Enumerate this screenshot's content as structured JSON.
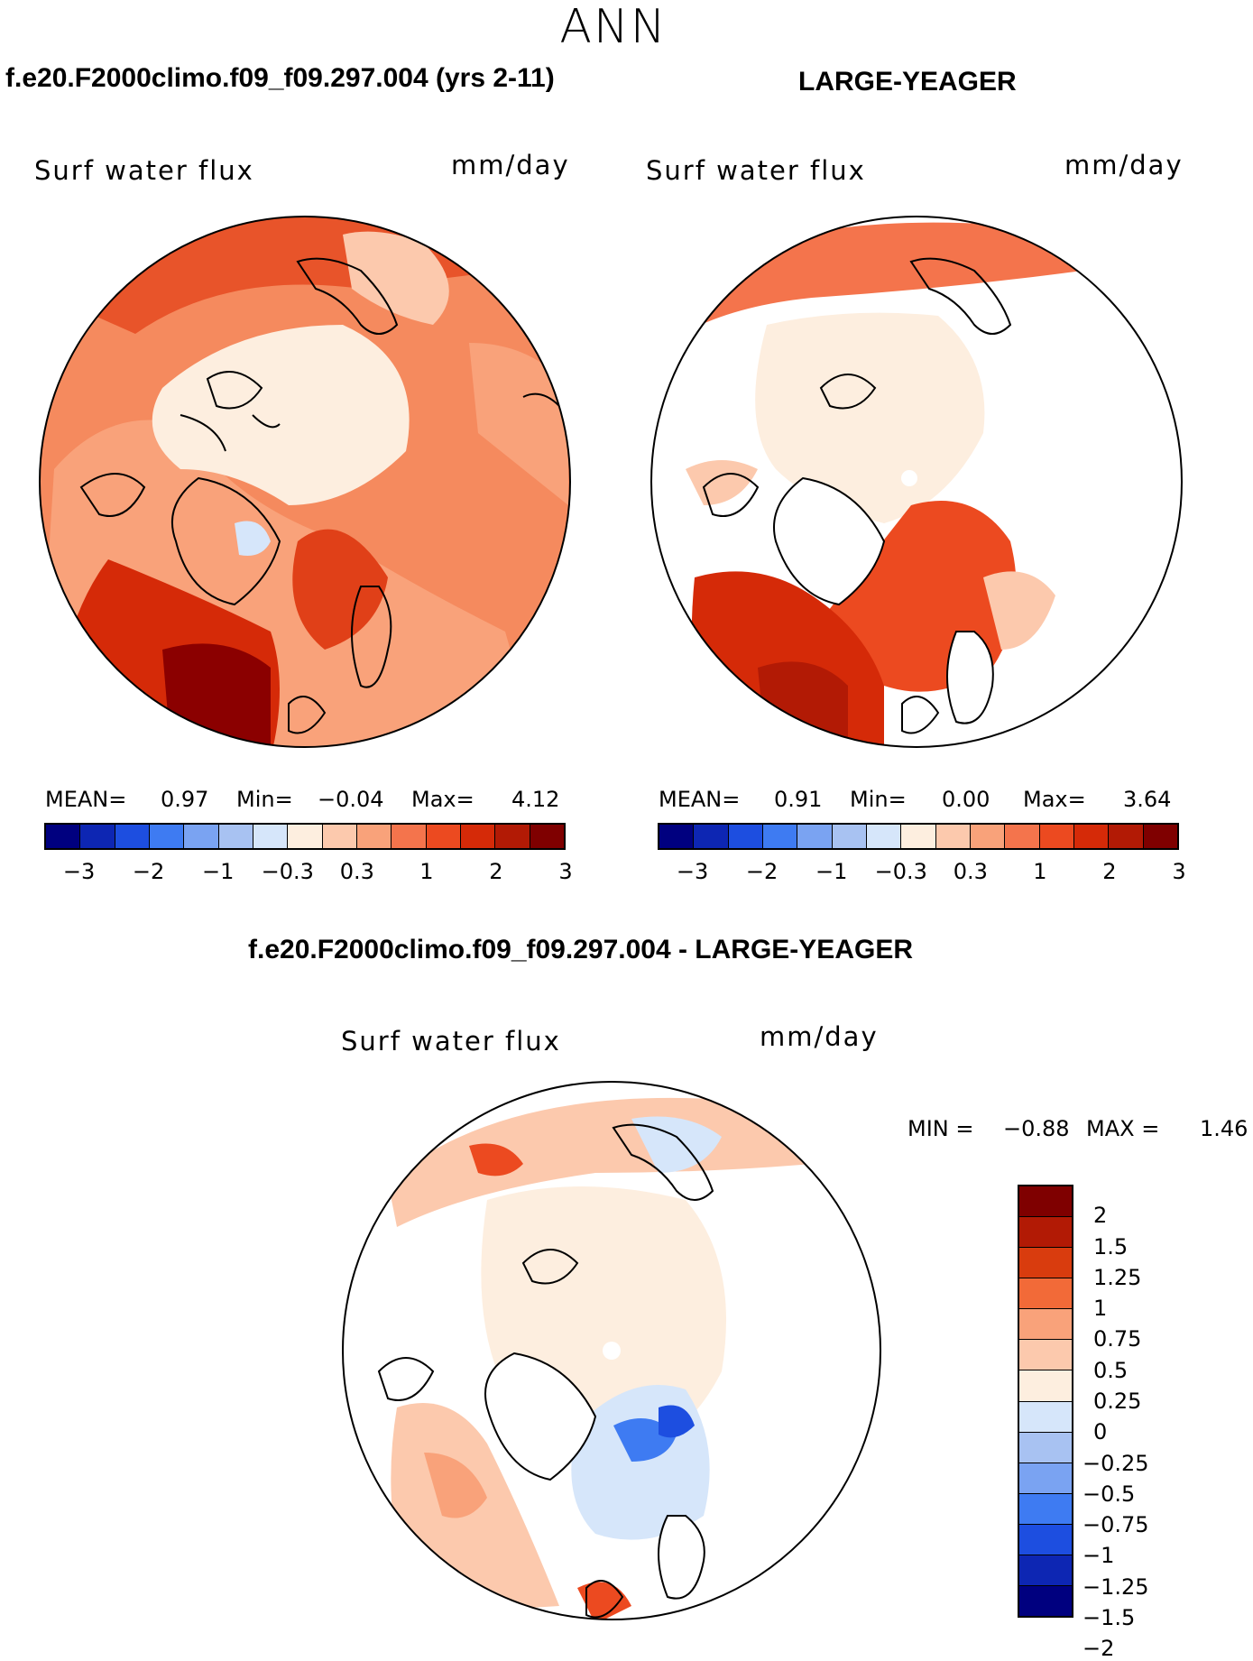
{
  "super_title": "ANN",
  "panels": [
    {
      "title": "f.e20.F2000climo.f09_f09.297.004 (yrs 2-11)",
      "field": "Surf water flux",
      "unit": "mm/day",
      "mean_label": "MEAN=",
      "mean": "0.97",
      "min_label": "Min=",
      "min": "−0.04",
      "max_label": "Max=",
      "max": "4.12"
    },
    {
      "title": "LARGE-YEAGER",
      "field": "Surf water flux",
      "unit": "mm/day",
      "mean_label": "MEAN=",
      "mean": "0.91",
      "min_label": "Min=",
      "min": "0.00",
      "max_label": "Max=",
      "max": "3.64"
    }
  ],
  "diff_panel": {
    "title": "f.e20.F2000climo.f09_f09.297.004 - LARGE-YEAGER",
    "field": "Surf water flux",
    "unit": "mm/day",
    "min_label": "MIN =",
    "min": "−0.88",
    "max_label": "MAX =",
    "max": "1.46"
  },
  "colorbar_top": {
    "colors": [
      "#00007f",
      "#0d26b3",
      "#1d4ee0",
      "#3e7bf2",
      "#7aa3f2",
      "#a8c2f2",
      "#d6e6fa",
      "#fdeedf",
      "#fcc9ad",
      "#f9a27a",
      "#f4744c",
      "#ec4a20",
      "#d52a08",
      "#b21a05",
      "#7f0000"
    ],
    "ticks": [
      "−3",
      "−2",
      "−1",
      "−0.3",
      "0.3",
      "1",
      "2",
      "3"
    ]
  },
  "colorbar_diff": {
    "colors": [
      "#7f0000",
      "#b21a05",
      "#d93c0e",
      "#f26a38",
      "#f9a27a",
      "#fcc9ad",
      "#fdeedf",
      "#d6e6fa",
      "#a8c2f2",
      "#7aa3f2",
      "#3e7bf2",
      "#1d4ee0",
      "#0d26b3",
      "#00007f"
    ],
    "ticks": [
      "2",
      "1.5",
      "1.25",
      "1",
      "0.75",
      "0.5",
      "0.25",
      "0",
      "−0.25",
      "−0.5",
      "−0.75",
      "−1",
      "−1.25",
      "−1.5",
      "−2"
    ]
  }
}
